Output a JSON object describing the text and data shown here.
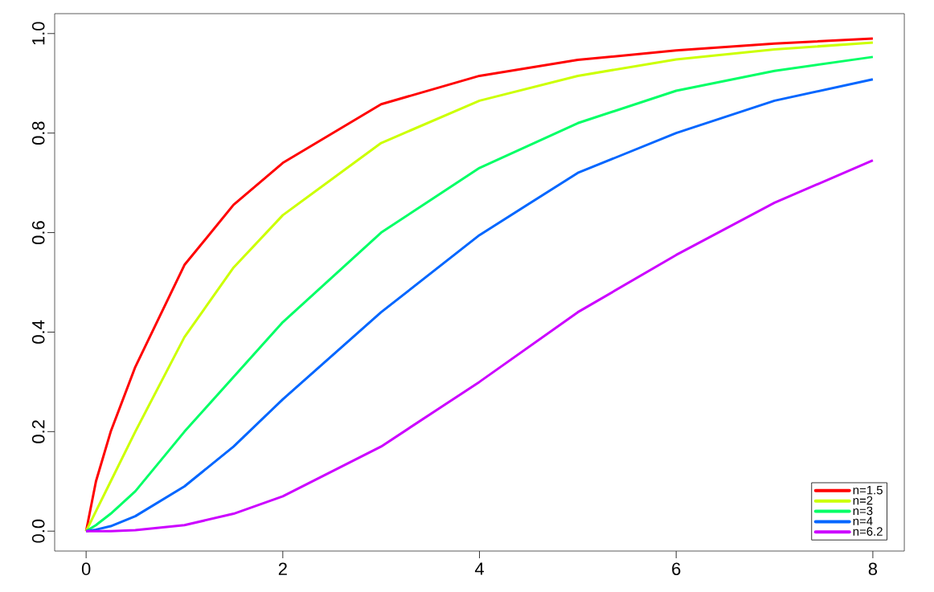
{
  "chart_data": {
    "type": "line",
    "xlim": [
      -0.32,
      8.32
    ],
    "ylim": [
      -0.04,
      1.04
    ],
    "xticks": [
      0,
      2,
      4,
      6,
      8
    ],
    "yticks": [
      {
        "value": 0,
        "label": "0.0"
      },
      {
        "value": 0.2,
        "label": "0.2"
      },
      {
        "value": 0.4,
        "label": "0.4"
      },
      {
        "value": 0.6,
        "label": "0.6"
      },
      {
        "value": 0.8,
        "label": "0.8"
      },
      {
        "value": 1,
        "label": "1.0"
      }
    ],
    "grid": false,
    "legend": "bottom right",
    "marker": "none",
    "line_style": "solid",
    "x": [
      0,
      0.1,
      0.25,
      0.5,
      1,
      1.5,
      2,
      3,
      4,
      5,
      6,
      7,
      8
    ],
    "series": [
      {
        "name": "n=1.5",
        "color": "#ff0000",
        "values": [
          0,
          0.1,
          0.2,
          0.33,
          0.535,
          0.656,
          0.74,
          0.858,
          0.915,
          0.947,
          0.966,
          0.98,
          0.99
        ]
      },
      {
        "name": "n=2",
        "color": "#ccff00",
        "values": [
          0,
          0.04,
          0.1,
          0.2,
          0.39,
          0.53,
          0.635,
          0.78,
          0.865,
          0.915,
          0.948,
          0.968,
          0.982
        ]
      },
      {
        "name": "n=3",
        "color": "#00ff66",
        "values": [
          0,
          0.012,
          0.035,
          0.08,
          0.2,
          0.31,
          0.42,
          0.6,
          0.73,
          0.82,
          0.885,
          0.925,
          0.953
        ]
      },
      {
        "name": "n=4",
        "color": "#0066ff",
        "values": [
          0,
          0.003,
          0.01,
          0.03,
          0.09,
          0.17,
          0.265,
          0.44,
          0.595,
          0.72,
          0.8,
          0.865,
          0.908
        ]
      },
      {
        "name": "n=6.2",
        "color": "#cc00ff",
        "values": [
          0,
          0,
          0,
          0.002,
          0.012,
          0.035,
          0.07,
          0.17,
          0.3,
          0.44,
          0.555,
          0.66,
          0.745
        ]
      }
    ]
  }
}
